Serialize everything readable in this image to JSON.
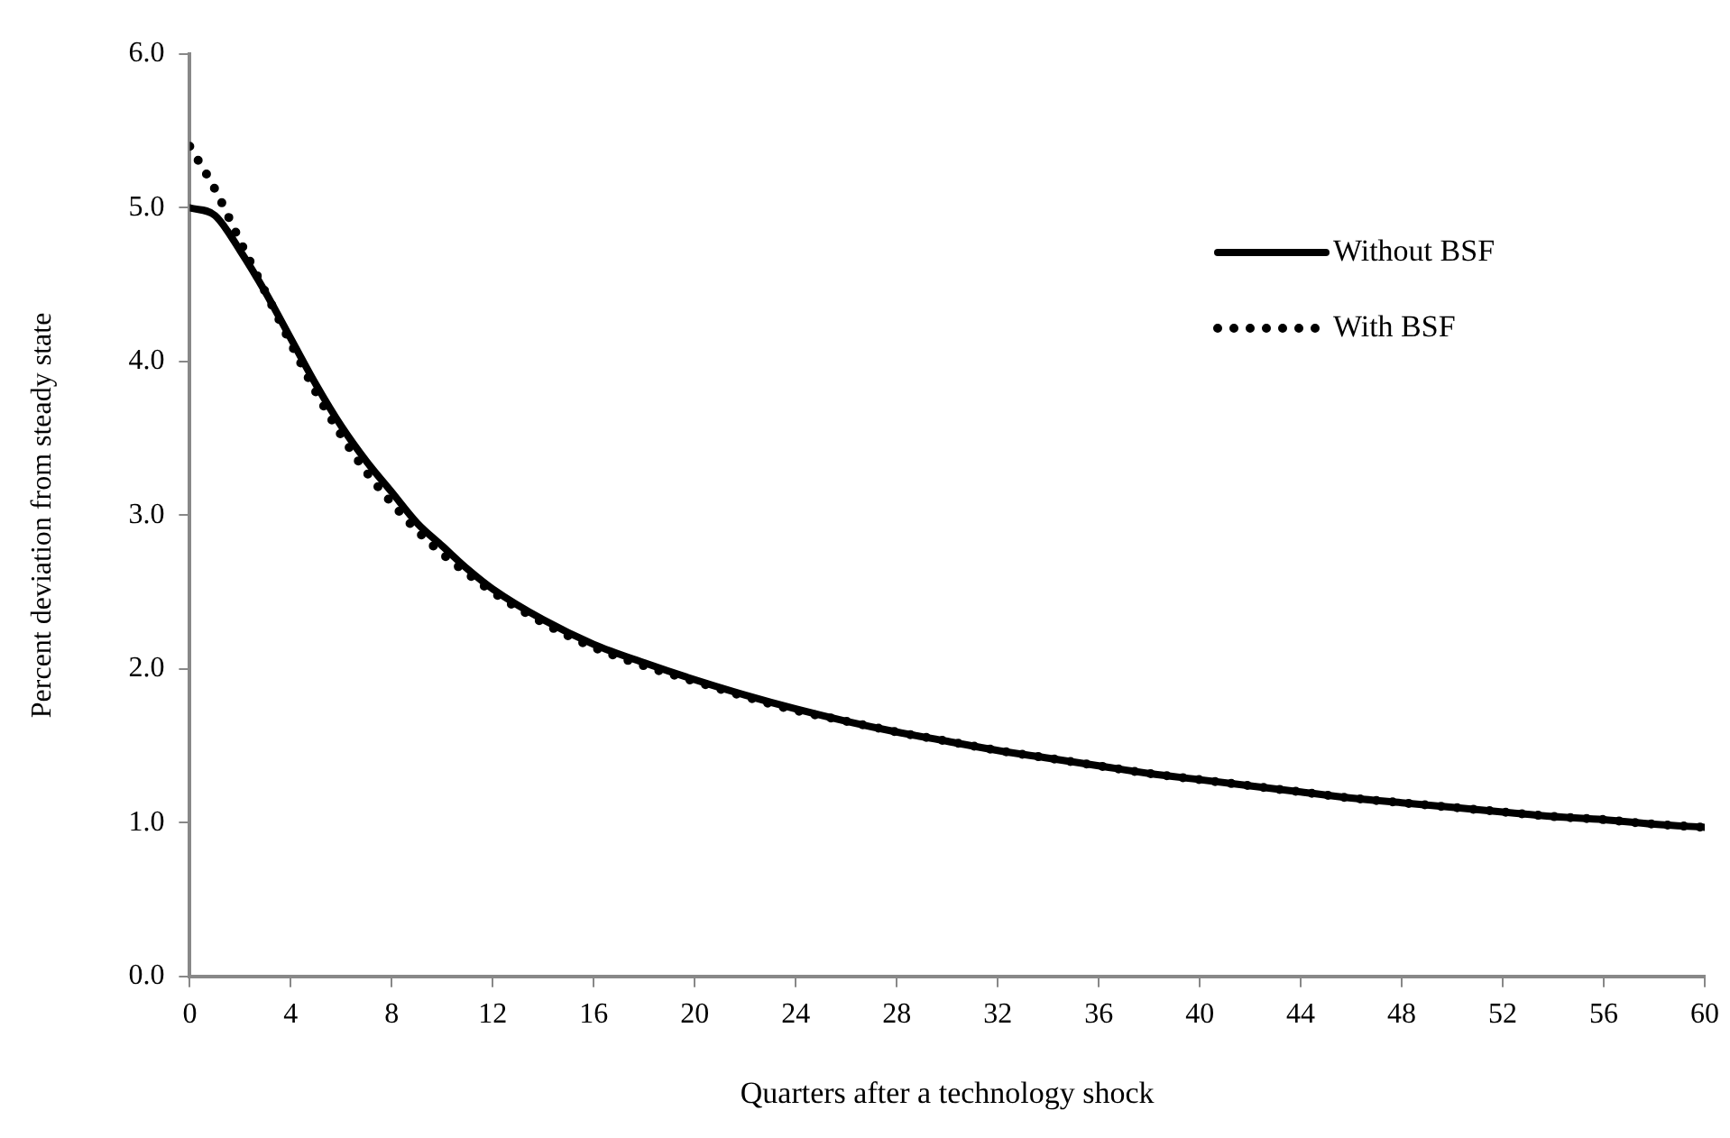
{
  "chart_data": {
    "type": "line",
    "xlabel": "Quarters after a technology shock",
    "ylabel": "Percent deviation from steady state",
    "x": [
      0,
      1,
      2,
      3,
      4,
      5,
      6,
      7,
      8,
      9,
      10,
      11,
      12,
      14,
      16,
      18,
      20,
      22,
      24,
      26,
      28,
      30,
      32,
      34,
      36,
      38,
      40,
      42,
      44,
      46,
      48,
      50,
      52,
      54,
      56,
      58,
      60
    ],
    "series": [
      {
        "name": "Without BSF",
        "color": "#000000",
        "line_style": "solid",
        "values": [
          5.0,
          4.95,
          4.72,
          4.45,
          4.15,
          3.85,
          3.58,
          3.35,
          3.15,
          2.95,
          2.8,
          2.65,
          2.52,
          2.32,
          2.16,
          2.04,
          1.93,
          1.83,
          1.74,
          1.66,
          1.59,
          1.53,
          1.47,
          1.42,
          1.37,
          1.32,
          1.28,
          1.24,
          1.2,
          1.16,
          1.13,
          1.1,
          1.07,
          1.04,
          1.02,
          0.99,
          0.97
        ]
      },
      {
        "name": "With BSF",
        "color": "#000000",
        "line_style": "dotted",
        "values": [
          5.4,
          5.12,
          4.78,
          4.45,
          4.12,
          3.8,
          3.52,
          3.28,
          3.08,
          2.9,
          2.75,
          2.62,
          2.5,
          2.3,
          2.14,
          2.02,
          1.92,
          1.82,
          1.73,
          1.66,
          1.59,
          1.53,
          1.47,
          1.42,
          1.37,
          1.32,
          1.28,
          1.24,
          1.2,
          1.16,
          1.13,
          1.1,
          1.07,
          1.04,
          1.02,
          0.99,
          0.97
        ]
      }
    ],
    "xlim": [
      0,
      60
    ],
    "xticks": [
      0,
      4,
      8,
      12,
      16,
      20,
      24,
      28,
      32,
      36,
      40,
      44,
      48,
      52,
      56,
      60
    ],
    "ylim": [
      0,
      6
    ],
    "yticks": [
      {
        "value": 0,
        "label": "0.0"
      },
      {
        "value": 1,
        "label": "1.0"
      },
      {
        "value": 2,
        "label": "2.0"
      },
      {
        "value": 3,
        "label": "3.0"
      },
      {
        "value": 4,
        "label": "4.0"
      },
      {
        "value": 5,
        "label": "5.0"
      },
      {
        "value": 6,
        "label": "6.0"
      }
    ],
    "grid": false,
    "legend": "top right",
    "marker": "none"
  }
}
